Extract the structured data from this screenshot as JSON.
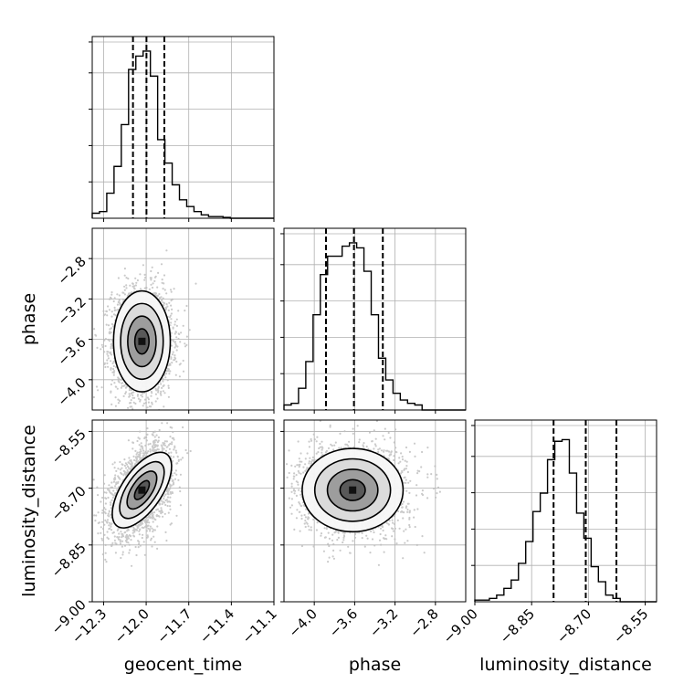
{
  "chart_data": {
    "type": "corner",
    "parameters": [
      "geocent_time",
      "phase",
      "luminosity_distance"
    ],
    "axes": {
      "geocent_time": {
        "label": "geocent_time",
        "lim": [
          -12.38,
          -11.1
        ],
        "ticks": [
          -12.3,
          -12.0,
          -11.7,
          -11.4,
          -11.1
        ],
        "tick_labels": [
          "−12.3",
          "−12.0",
          "−11.7",
          "−11.4",
          "−11.1"
        ]
      },
      "phase": {
        "label": "phase",
        "lim": [
          -4.3,
          -2.5
        ],
        "ticks": [
          -4.0,
          -3.6,
          -3.2,
          -2.8
        ],
        "tick_labels": [
          "−4.0",
          "−3.6",
          "−3.2",
          "−2.8"
        ]
      },
      "luminosity_distance": {
        "label": "luminosity_distance",
        "lim": [
          -9.0,
          -8.52
        ],
        "ticks": [
          -9.0,
          -8.85,
          -8.7,
          -8.55
        ],
        "tick_labels": [
          "−9.00",
          "−8.85",
          "−8.70",
          "−8.55"
        ]
      }
    },
    "diagonal": [
      {
        "param": "geocent_time",
        "bins_start": -12.38,
        "bin_width": 0.0512,
        "counts": [
          0.03,
          0.04,
          0.15,
          0.31,
          0.56,
          0.89,
          0.97,
          1.0,
          0.85,
          0.47,
          0.33,
          0.2,
          0.11,
          0.07,
          0.04,
          0.02,
          0.01,
          0.01,
          0.005,
          0.0,
          0.0,
          0.0,
          0.0,
          0.0,
          0.0
        ],
        "quantiles": [
          -12.093,
          -11.998,
          -11.872
        ]
      },
      {
        "param": "phase",
        "bins_start": -4.3,
        "bin_width": 0.072,
        "counts": [
          0.03,
          0.04,
          0.13,
          0.29,
          0.57,
          0.81,
          0.92,
          0.92,
          0.98,
          1.0,
          0.97,
          0.83,
          0.57,
          0.31,
          0.18,
          0.1,
          0.06,
          0.04,
          0.03,
          0.0,
          0.0,
          0.0,
          0.0,
          0.0,
          0.0
        ],
        "quantiles": [
          -3.884,
          -3.607,
          -3.321
        ]
      },
      {
        "param": "luminosity_distance",
        "bins_start": -9.0,
        "bin_width": 0.0192,
        "counts": [
          0.01,
          0.01,
          0.02,
          0.04,
          0.08,
          0.13,
          0.23,
          0.36,
          0.54,
          0.65,
          0.85,
          0.96,
          0.97,
          0.77,
          0.53,
          0.38,
          0.21,
          0.12,
          0.04,
          0.02,
          0.0,
          0.0,
          0.0,
          0.0,
          0.0
        ],
        "quantiles": [
          -8.792,
          -8.707,
          -8.626
        ]
      }
    ],
    "pairs": [
      {
        "x": "geocent_time",
        "y": "phase",
        "mean": [
          -12.03,
          -3.62
        ],
        "std": [
          0.1,
          0.25
        ],
        "corr": 0.0
      },
      {
        "x": "geocent_time",
        "y": "luminosity_distance",
        "mean": [
          -12.03,
          -8.705
        ],
        "std": [
          0.1,
          0.055
        ],
        "corr": 0.45
      },
      {
        "x": "phase",
        "y": "luminosity_distance",
        "mean": [
          -3.62,
          -8.705
        ],
        "std": [
          0.25,
          0.055
        ],
        "corr": 0.0
      }
    ],
    "grid": true
  }
}
